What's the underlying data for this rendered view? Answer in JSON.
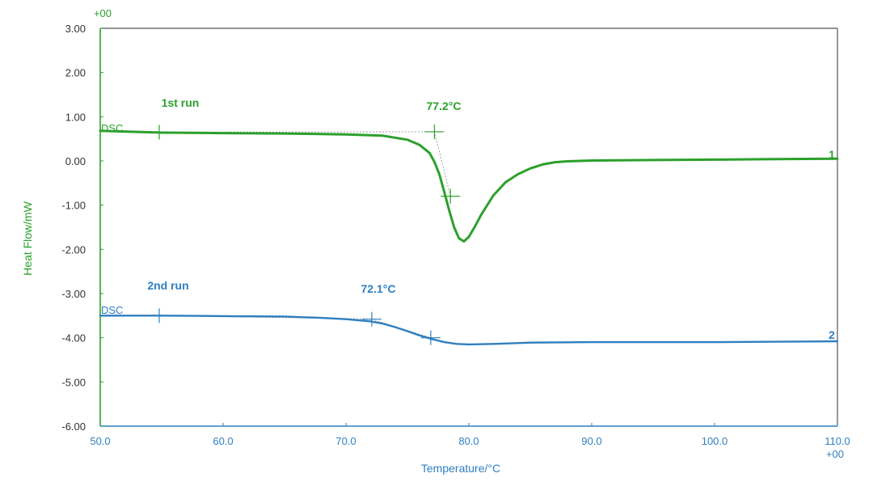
{
  "colors": {
    "run1": "#2ca02c",
    "run2": "#2f7fbf",
    "frame": "#555555",
    "ylabel": "#2ca02c",
    "xtick": "#2f7fbf",
    "ytick": "#333333"
  },
  "chart_data": {
    "type": "line",
    "title": "",
    "xlabel": "Temperature/°C",
    "ylabel": "Heat Flow/mW",
    "xlim": [
      50.0,
      110.0
    ],
    "ylim": [
      -6.0,
      3.0
    ],
    "x_exponent_label": "+00",
    "y_exponent_label": "+00",
    "xticks": [
      50.0,
      60.0,
      70.0,
      80.0,
      90.0,
      100.0,
      110.0
    ],
    "xtick_labels": [
      "50.0",
      "60.0",
      "70.0",
      "80.0",
      "90.0",
      "100.0",
      "110.0"
    ],
    "yticks": [
      3.0,
      2.0,
      1.0,
      0.0,
      -1.0,
      -2.0,
      -3.0,
      -4.0,
      -5.0,
      -6.0
    ],
    "ytick_labels": [
      "3.00",
      "2.00",
      "1.00",
      "0.00",
      "-1.00",
      "-2.00",
      "-3.00",
      "-4.00",
      "-5.00",
      "-6.00"
    ],
    "grid": false,
    "series": [
      {
        "name": "1st run",
        "curve_number": "1",
        "curve_label": "DSC",
        "color": "#2ca02c",
        "x": [
          50,
          55,
          60,
          65,
          70,
          73,
          75,
          76,
          76.8,
          77.2,
          77.6,
          78.0,
          78.4,
          78.8,
          79.2,
          79.6,
          80.0,
          80.5,
          81,
          82,
          83,
          84,
          85,
          86,
          87,
          88,
          90,
          95,
          100,
          105,
          110
        ],
        "y": [
          0.68,
          0.64,
          0.63,
          0.62,
          0.6,
          0.57,
          0.48,
          0.36,
          0.18,
          -0.02,
          -0.3,
          -0.7,
          -1.12,
          -1.5,
          -1.75,
          -1.82,
          -1.72,
          -1.48,
          -1.22,
          -0.78,
          -0.48,
          -0.3,
          -0.17,
          -0.08,
          -0.03,
          -0.01,
          0.01,
          0.02,
          0.03,
          0.04,
          0.05
        ],
        "annotation": "77.2°C",
        "markers": [
          {
            "x": 54.8,
            "y": 0.65
          },
          {
            "x": 77.2,
            "y": 0.66
          },
          {
            "x": 78.5,
            "y": -0.8
          }
        ]
      },
      {
        "name": "2nd run",
        "curve_number": "2",
        "curve_label": "DSC",
        "color": "#2f7fbf",
        "x": [
          50,
          55,
          60,
          65,
          68,
          70,
          72,
          73,
          74,
          75,
          76,
          77,
          78,
          79,
          80,
          82,
          85,
          90,
          95,
          100,
          105,
          110
        ],
        "y": [
          -3.5,
          -3.5,
          -3.51,
          -3.52,
          -3.55,
          -3.58,
          -3.63,
          -3.68,
          -3.76,
          -3.85,
          -3.95,
          -4.03,
          -4.1,
          -4.14,
          -4.15,
          -4.14,
          -4.11,
          -4.1,
          -4.1,
          -4.1,
          -4.09,
          -4.08
        ],
        "annotation": "72.1°C",
        "markers": [
          {
            "x": 54.8,
            "y": -3.5
          },
          {
            "x": 72.1,
            "y": -3.58
          },
          {
            "x": 76.9,
            "y": -4.0
          }
        ]
      }
    ]
  }
}
